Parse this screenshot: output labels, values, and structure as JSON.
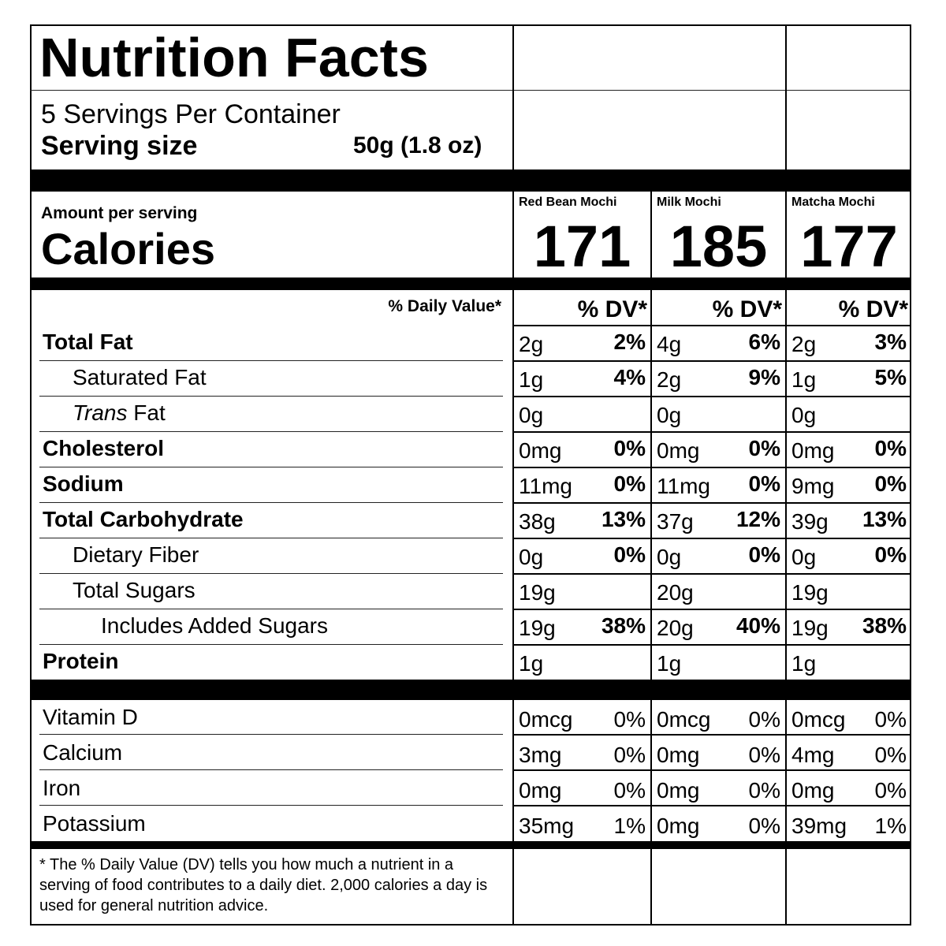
{
  "title": "Nutrition Facts",
  "servings_per_container": "5 Servings Per Container",
  "serving_size_label": "Serving size",
  "serving_size_value": "50g (1.8 oz)",
  "amount_per_serving": "Amount per serving",
  "calories_label": "Calories",
  "products": [
    {
      "name": "Red Bean Mochi",
      "calories": "171"
    },
    {
      "name": "Milk Mochi",
      "calories": "185"
    },
    {
      "name": "Matcha Mochi",
      "calories": "177"
    }
  ],
  "dv_header": "% Daily Value*",
  "dv_col_header": "% DV*",
  "nutrients": [
    {
      "label": "Total Fat",
      "values": [
        [
          "2g",
          "2%"
        ],
        [
          "4g",
          "6%"
        ],
        [
          "2g",
          "3%"
        ]
      ]
    },
    {
      "label": "Saturated Fat",
      "values": [
        [
          "1g",
          "4%"
        ],
        [
          "2g",
          "9%"
        ],
        [
          "1g",
          "5%"
        ]
      ]
    },
    {
      "label_italic": "Trans",
      "label": " Fat",
      "values": [
        [
          "0g",
          ""
        ],
        [
          "0g",
          ""
        ],
        [
          "0g",
          ""
        ]
      ]
    },
    {
      "label": "Cholesterol",
      "values": [
        [
          "0mg",
          "0%"
        ],
        [
          "0mg",
          "0%"
        ],
        [
          "0mg",
          "0%"
        ]
      ]
    },
    {
      "label": "Sodium",
      "values": [
        [
          "11mg",
          "0%"
        ],
        [
          "11mg",
          "0%"
        ],
        [
          "9mg",
          "0%"
        ]
      ]
    },
    {
      "label": "Total Carbohydrate",
      "values": [
        [
          "38g",
          "13%"
        ],
        [
          "37g",
          "12%"
        ],
        [
          "39g",
          "13%"
        ]
      ]
    },
    {
      "label": "Dietary Fiber",
      "values": [
        [
          "0g",
          "0%"
        ],
        [
          "0g",
          "0%"
        ],
        [
          "0g",
          "0%"
        ]
      ]
    },
    {
      "label": "Total Sugars",
      "values": [
        [
          "19g",
          ""
        ],
        [
          "20g",
          ""
        ],
        [
          "19g",
          ""
        ]
      ]
    },
    {
      "label": "Includes  Added Sugars",
      "values": [
        [
          "19g",
          "38%"
        ],
        [
          "20g",
          "40%"
        ],
        [
          "19g",
          "38%"
        ]
      ]
    },
    {
      "label": "Protein",
      "values": [
        [
          "1g",
          ""
        ],
        [
          "1g",
          ""
        ],
        [
          "1g",
          ""
        ]
      ]
    }
  ],
  "vitamins": [
    {
      "label": "Vitamin D",
      "values": [
        [
          "0mcg",
          "0%"
        ],
        [
          "0mcg",
          "0%"
        ],
        [
          "0mcg",
          "0%"
        ]
      ]
    },
    {
      "label": "Calcium",
      "values": [
        [
          "3mg",
          "0%"
        ],
        [
          "0mg",
          "0%"
        ],
        [
          "4mg",
          "0%"
        ]
      ]
    },
    {
      "label": "Iron",
      "values": [
        [
          "0mg",
          "0%"
        ],
        [
          "0mg",
          "0%"
        ],
        [
          "0mg",
          "0%"
        ]
      ]
    },
    {
      "label": "Potassium",
      "values": [
        [
          "35mg",
          "1%"
        ],
        [
          "0mg",
          "0%"
        ],
        [
          "39mg",
          "1%"
        ]
      ]
    }
  ],
  "footnote": "* The % Daily Value (DV) tells you how much a nutrient in a serving of food contributes to a daily diet. 2,000 calories a day is used for general nutrition advice."
}
